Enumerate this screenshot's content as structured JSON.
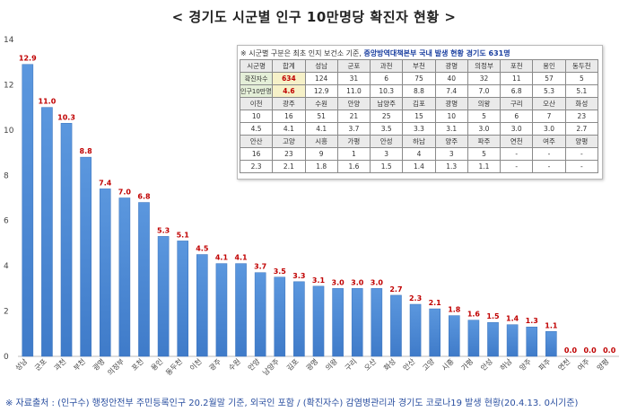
{
  "title": "< 경기도 시군별 인구 10만명당 확진자 현황 >",
  "footnote": "※ 자료출처 : (인구수) 행정안전부 주민등록인구 20.2월말 기준, 외국인 포함 / (확진자수) 감염병관리과 경기도 코로나19 발생 현황(20.4.13. 0시기준)",
  "table_note": {
    "prefix": "※ 시군별 구분은 최초 인지 보건소 기준,",
    "highlight": "중앙방역대책본부 국내 발생 현황 경기도 631명"
  },
  "table_blocks": [
    {
      "header": [
        "시군명",
        "합계",
        "성남",
        "군포",
        "과천",
        "부천",
        "광명",
        "의정부",
        "포천",
        "용인",
        "동두천"
      ],
      "rows": [
        [
          "확진자수",
          "634",
          "124",
          "31",
          "6",
          "75",
          "40",
          "32",
          "11",
          "57",
          "5"
        ],
        [
          "인구10만명당",
          "4.6",
          "12.9",
          "11.0",
          "10.3",
          "8.8",
          "7.4",
          "7.0",
          "6.8",
          "5.3",
          "5.1"
        ]
      ]
    },
    {
      "header": [
        "이천",
        "광주",
        "수원",
        "안양",
        "남양주",
        "김포",
        "광명",
        "의왕",
        "구리",
        "오산",
        "화성"
      ],
      "rows": [
        [
          "10",
          "16",
          "51",
          "21",
          "25",
          "15",
          "10",
          "5",
          "6",
          "7",
          "23"
        ],
        [
          "4.5",
          "4.1",
          "4.1",
          "3.7",
          "3.5",
          "3.3",
          "3.1",
          "3.0",
          "3.0",
          "3.0",
          "2.7"
        ]
      ]
    },
    {
      "header": [
        "안산",
        "고양",
        "시흥",
        "가평",
        "안성",
        "하남",
        "양주",
        "파주",
        "연천",
        "여주",
        "양평"
      ],
      "rows": [
        [
          "16",
          "23",
          "9",
          "1",
          "3",
          "4",
          "3",
          "5",
          "-",
          "-",
          "-"
        ],
        [
          "2.3",
          "2.1",
          "1.8",
          "1.6",
          "1.5",
          "1.4",
          "1.3",
          "1.1",
          "-",
          "-",
          "-"
        ]
      ]
    }
  ],
  "chart_data": {
    "type": "bar",
    "categories": [
      "성남",
      "군포",
      "과천",
      "부천",
      "광명",
      "의정부",
      "포천",
      "용인",
      "동두천",
      "이천",
      "광주",
      "수원",
      "안양",
      "남양주",
      "김포",
      "광명",
      "의왕",
      "구리",
      "오산",
      "화성",
      "안산",
      "고양",
      "시흥",
      "가평",
      "안성",
      "하남",
      "양주",
      "파주",
      "연천",
      "여주",
      "양평"
    ],
    "values": [
      12.9,
      11.0,
      10.3,
      8.8,
      7.4,
      7.0,
      6.8,
      5.3,
      5.1,
      4.5,
      4.1,
      4.1,
      3.7,
      3.5,
      3.3,
      3.1,
      3.0,
      3.0,
      3.0,
      2.7,
      2.3,
      2.1,
      1.8,
      1.6,
      1.5,
      1.4,
      1.3,
      1.1,
      0.0,
      0.0,
      0.0
    ],
    "value_labels": [
      "12.9",
      "11.0",
      "10.3",
      "8.8",
      "7.4",
      "7.0",
      "6.8",
      "5.3",
      "5.1",
      "4.5",
      "4.1",
      "4.1",
      "3.7",
      "3.5",
      "3.3",
      "3.1",
      "3.0",
      "3.0",
      "3.0",
      "2.7",
      "2.3",
      "2.1",
      "1.8",
      "1.6",
      "1.5",
      "1.4",
      "1.3",
      "1.1",
      "0.0",
      "0.0",
      "0.0"
    ],
    "ylim": [
      0,
      14
    ],
    "yticks": [
      0,
      2,
      4,
      6,
      8,
      10,
      12,
      14
    ],
    "grid": false,
    "bar_color": "#4a88d6",
    "label_color": "#c00000"
  }
}
